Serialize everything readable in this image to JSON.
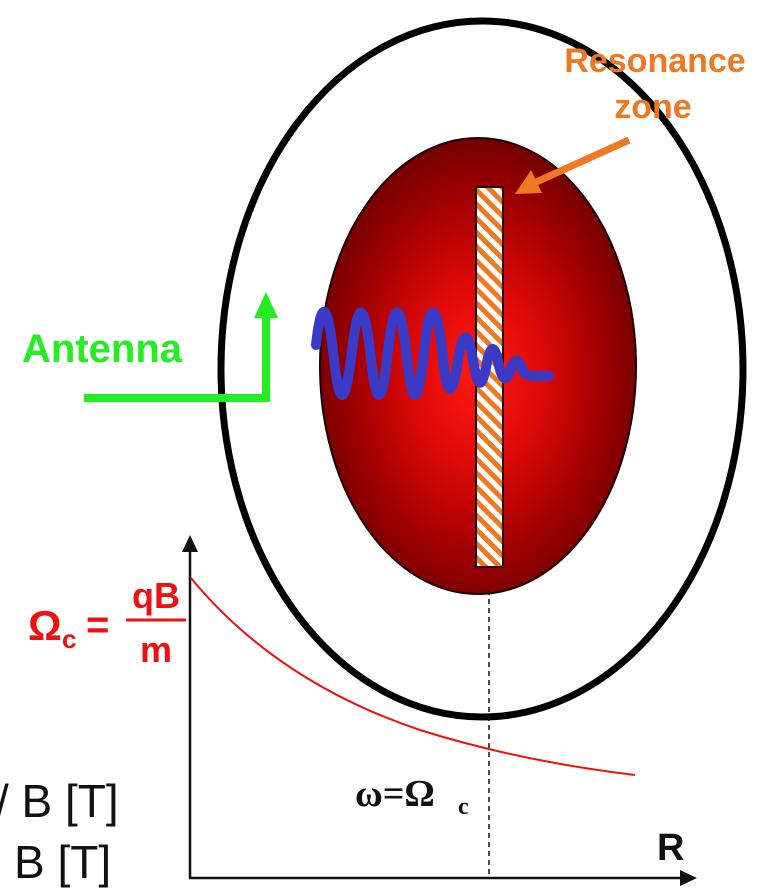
{
  "labels": {
    "resonance_line1": "Resonance",
    "resonance_line2": "zone",
    "antenna": "Antenna",
    "omega_c_symbol": "Ω",
    "omega_c_subscript": "c",
    "equals": "=",
    "fraction_numerator": "qB",
    "fraction_denominator": "m",
    "resonance_condition": "ω=Ω",
    "resonance_condition_subscript": "c",
    "axis_r": "R",
    "cut_text_line1": "/ B [T]",
    "cut_text_line2": "B [T]"
  },
  "colors": {
    "plasma_center": "#ff1a10",
    "plasma_edge": "#6a0000",
    "vessel": "#000000",
    "antenna": "#22ee22",
    "wave": "#3a3ac8",
    "resonance_label": "#f07820",
    "cyclotron_curve": "#ee1111"
  }
}
